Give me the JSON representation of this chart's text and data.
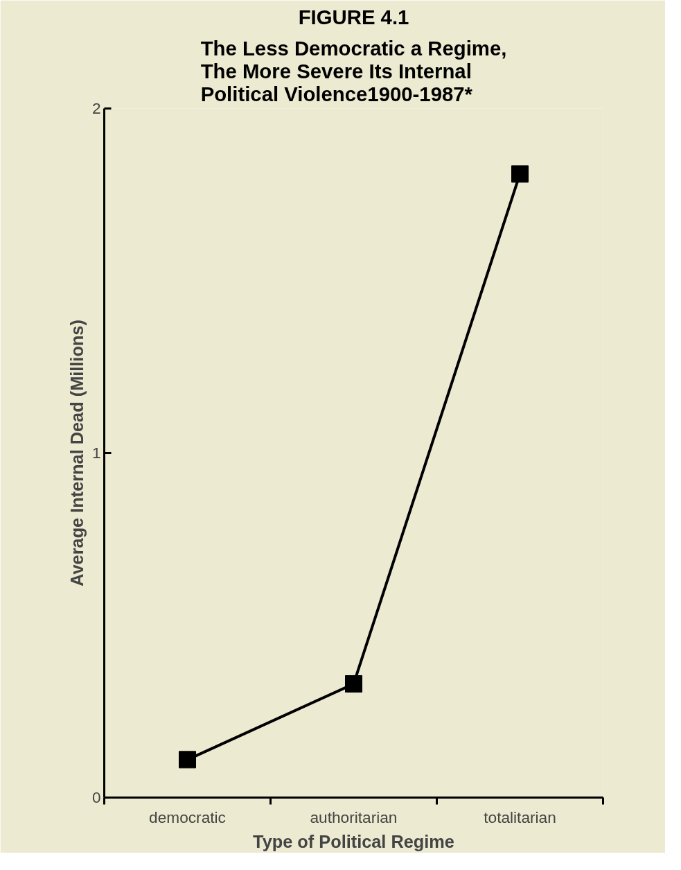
{
  "chart_data": {
    "type": "line",
    "title": "FIGURE 4.1",
    "subtitle": "The Less Democratic a Regime,\nThe More Severe Its Internal\nPolitical Violence1900-1987*",
    "xlabel": "Type of Political Regime",
    "ylabel": "Average Internal Dead (Millions)",
    "categories": [
      "democratic",
      "authoritarian",
      "totalitarian"
    ],
    "series": [
      {
        "color": "#000000",
        "values": [
          0.11,
          0.33,
          1.81
        ]
      }
    ],
    "ylim": [
      0,
      2
    ],
    "yticks": [
      0,
      1,
      2
    ],
    "grid": false,
    "marker": "square",
    "line_style": "solid"
  }
}
